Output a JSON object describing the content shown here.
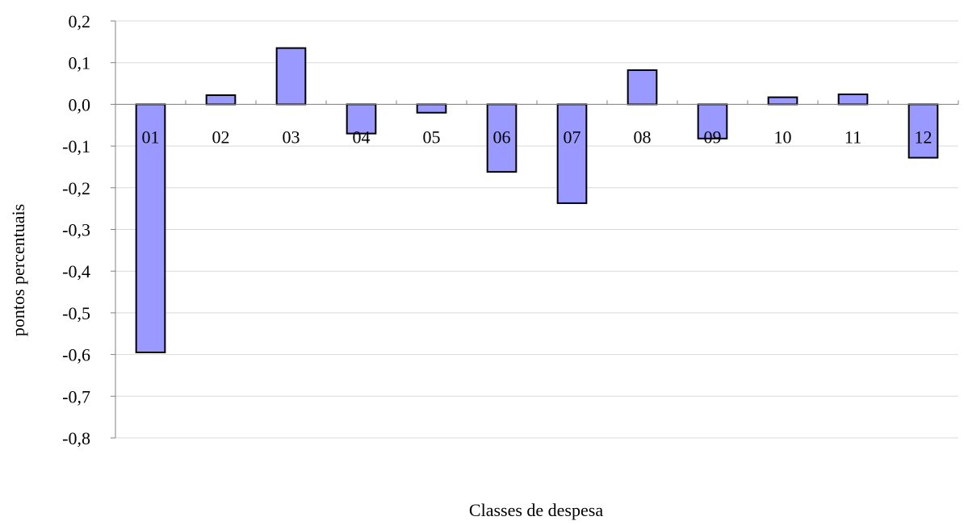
{
  "chart_data": {
    "type": "bar",
    "title": "",
    "xlabel": "Classes de despesa",
    "ylabel": "pontos percentuais",
    "categories": [
      "01",
      "02",
      "03",
      "04",
      "05",
      "06",
      "07",
      "08",
      "09",
      "10",
      "11",
      "12"
    ],
    "values": [
      -0.595,
      0.022,
      0.135,
      -0.07,
      -0.02,
      -0.162,
      -0.237,
      0.082,
      -0.082,
      0.017,
      0.024,
      -0.128
    ],
    "ylim": [
      -0.8,
      0.2
    ],
    "yticks": [
      "0,2",
      "0,1",
      "0,0",
      "-0,1",
      "-0,2",
      "-0,3",
      "-0,4",
      "-0,5",
      "-0,6",
      "-0,7",
      "-0,8"
    ],
    "ytick_values": [
      0.2,
      0.1,
      0.0,
      -0.1,
      -0.2,
      -0.3,
      -0.4,
      -0.5,
      -0.6,
      -0.7,
      -0.8
    ],
    "grid": true,
    "legend": "none",
    "colors": {
      "bar_fill": "#9999ff",
      "bar_stroke": "#000000",
      "grid": "#d9d9d9",
      "axis": "#808080"
    }
  }
}
